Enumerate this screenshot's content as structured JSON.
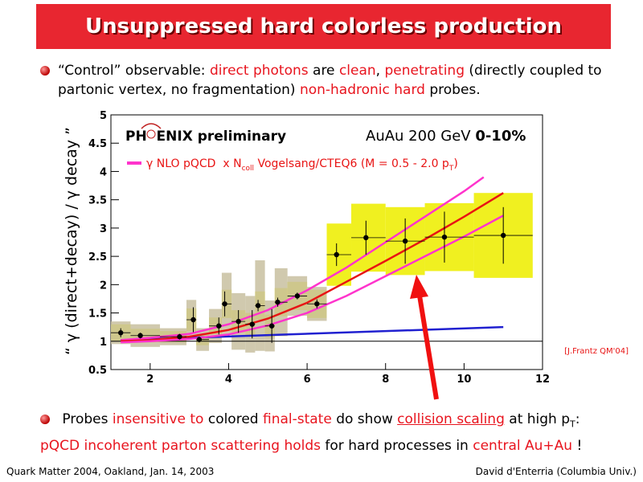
{
  "header": {
    "title": "Unsuppressed hard colorless production"
  },
  "bullets": [
    [
      {
        "text": "“Control” observable: ",
        "color": "#000000"
      },
      {
        "text": "direct photons",
        "color": "#e8141e"
      },
      {
        "text": " are ",
        "color": "#000000"
      },
      {
        "text": "clean",
        "color": "#e8141e"
      },
      {
        "text": ", ",
        "color": "#000000"
      },
      {
        "text": "penetrating",
        "color": "#e8141e"
      },
      {
        "text": " (directly coupled to partonic vertex, no fragmentation) ",
        "color": "#000000"
      },
      {
        "text": "non-hadronic hard",
        "color": "#e8141e"
      },
      {
        "text": " probes.",
        "color": "#000000"
      }
    ],
    [
      {
        "text": " Probes ",
        "color": "#000000"
      },
      {
        "text": "insensitive to",
        "color": "#e8141e"
      },
      {
        "text": " colored ",
        "color": "#000000"
      },
      {
        "text": "final-state",
        "color": "#e8141e"
      },
      {
        "text": " do show ",
        "color": "#000000"
      },
      {
        "text": "collision scaling",
        "color": "#e8141e",
        "underline": true
      },
      {
        "text": " at high p",
        "color": "#000000"
      },
      {
        "text": "T",
        "color": "#000000",
        "sub": true
      },
      {
        "text": ":",
        "color": "#000000"
      }
    ],
    [
      {
        "text": "pQCD incoherent parton scattering holds",
        "color": "#e8141e"
      },
      {
        "text": " for hard processes in ",
        "color": "#000000"
      },
      {
        "text": "central Au+Au",
        "color": "#e8141e"
      },
      {
        "text": " !",
        "color": "#000000"
      }
    ]
  ],
  "footer": {
    "left": "Quark Matter 2004, Oakland, Jan. 14, 2003",
    "right": "David d'Enterria (Columbia Univ.)"
  },
  "chart_data": {
    "type": "scatter",
    "y_label": "“ γ (direct+decay) / γ decay ”",
    "annotations": {
      "experiment": "PH  ENIX preliminary",
      "system": "AuAu 200 GeV ",
      "centrality": "0-10%",
      "reference": "[J.Frantz QM'04]"
    },
    "legend_text": [
      {
        "text": "γ NLO pQCD  x N"
      },
      {
        "text": "coll",
        "sub": true
      },
      {
        "text": " Vogelsang/CTEQ6 (M = 0.5 - 2.0 p"
      },
      {
        "text": "T",
        "sub": true
      },
      {
        "text": ")"
      }
    ],
    "legend_color": "#ff33cc",
    "xlim": [
      1,
      12
    ],
    "ylim": [
      0.5,
      5
    ],
    "xticks": [
      2,
      4,
      6,
      8,
      10,
      12
    ],
    "yticks": [
      0.5,
      1,
      1.5,
      2,
      2.5,
      3,
      3.5,
      4,
      4.5,
      5
    ],
    "reference_line": 1,
    "points": {
      "color": "#000000",
      "sys_color": "#f0f020",
      "sys_alt_color": "#c8bfa0",
      "x": [
        1.25,
        1.75,
        2.75,
        3.1,
        3.25,
        3.75,
        3.9,
        4.25,
        4.6,
        4.75,
        5.1,
        5.25,
        5.75,
        6.25,
        6.75,
        7.5,
        8.5,
        9.5,
        11
      ],
      "values": [
        1.15,
        1.1,
        1.08,
        1.38,
        1.03,
        1.27,
        1.66,
        1.35,
        1.3,
        1.63,
        1.27,
        1.69,
        1.8,
        1.66,
        2.53,
        2.83,
        2.77,
        2.84,
        2.87
      ],
      "errors": [
        0.08,
        0.05,
        0.05,
        0.22,
        0.05,
        0.15,
        0.22,
        0.2,
        0.25,
        0.1,
        0.3,
        0.08,
        0.06,
        0.08,
        0.2,
        0.3,
        0.4,
        0.45,
        0.5
      ],
      "sys": [
        0.15,
        0.12,
        0.1,
        0.2,
        0.1,
        0.15,
        0.25,
        0.2,
        0.2,
        0.25,
        0.2,
        0.25,
        0.25,
        0.25,
        0.55,
        0.6,
        0.6,
        0.6,
        0.75
      ],
      "sys_alt": [
        0.2,
        0.2,
        0.15,
        0.35,
        0.2,
        0.3,
        0.55,
        0.5,
        0.5,
        0.8,
        0.45,
        0.6,
        0.35,
        0.3,
        null,
        null,
        null,
        null,
        null
      ]
    },
    "curves": [
      {
        "color": "#2020d0",
        "x": [
          1.25,
          11
        ],
        "values": [
          1.02,
          1.25
        ]
      },
      {
        "color": "#ff33cc",
        "x": [
          1.25,
          2,
          3,
          4,
          5,
          6,
          7,
          8,
          9,
          10,
          10.5
        ],
        "values": [
          1.02,
          1.06,
          1.13,
          1.3,
          1.55,
          1.9,
          2.3,
          2.75,
          3.2,
          3.65,
          3.9
        ]
      },
      {
        "color": "#e81414",
        "x": [
          1.25,
          2,
          3,
          4,
          5,
          6,
          7,
          8,
          9,
          10,
          11
        ],
        "values": [
          1.0,
          1.02,
          1.08,
          1.2,
          1.4,
          1.68,
          2.05,
          2.42,
          2.8,
          3.2,
          3.62
        ]
      },
      {
        "color": "#ff33cc",
        "x": [
          1.25,
          2,
          3,
          4,
          5,
          6,
          7,
          8,
          9,
          10,
          11
        ],
        "values": [
          0.98,
          1.0,
          1.04,
          1.12,
          1.28,
          1.5,
          1.8,
          2.15,
          2.5,
          2.85,
          3.22
        ]
      }
    ]
  }
}
